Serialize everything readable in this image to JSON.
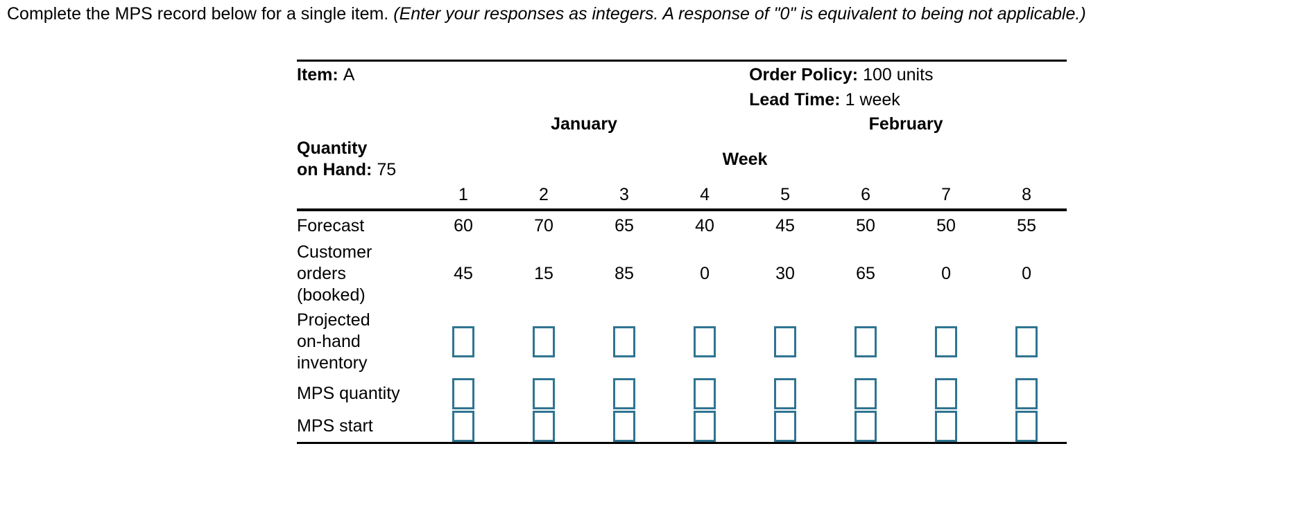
{
  "instruction": {
    "text_normal": "Complete the MPS record below for a single item.",
    "text_italic": "(Enter your responses as integers. A response of \"0\" is equivalent to being not applicable.)"
  },
  "record": {
    "item": {
      "label": "Item:",
      "value": "A"
    },
    "order_policy": {
      "label": "Order Policy:",
      "value": "100 units"
    },
    "lead_time": {
      "label": "Lead Time:",
      "value": "1 week"
    },
    "quantity_on_hand": {
      "label_line1": "Quantity",
      "label_line2": "on Hand:",
      "value": "75"
    },
    "months": [
      "January",
      "February"
    ],
    "week_label": "Week",
    "week_numbers": [
      "1",
      "2",
      "3",
      "4",
      "5",
      "6",
      "7",
      "8"
    ],
    "rows": [
      {
        "label_lines": [
          "Forecast"
        ],
        "values": [
          "60",
          "70",
          "65",
          "40",
          "45",
          "50",
          "50",
          "55"
        ]
      },
      {
        "label_lines": [
          "Customer",
          "orders",
          "(booked)"
        ],
        "values": [
          "45",
          "15",
          "85",
          "0",
          "30",
          "65",
          "0",
          "0"
        ]
      },
      {
        "label_lines": [
          "Projected",
          "on-hand",
          "inventory"
        ],
        "inputs": true
      },
      {
        "label_lines": [
          "MPS quantity"
        ],
        "inputs": true
      },
      {
        "label_lines": [
          "MPS start"
        ],
        "inputs": true
      }
    ]
  },
  "colors": {
    "input_border": "#2f7491"
  }
}
